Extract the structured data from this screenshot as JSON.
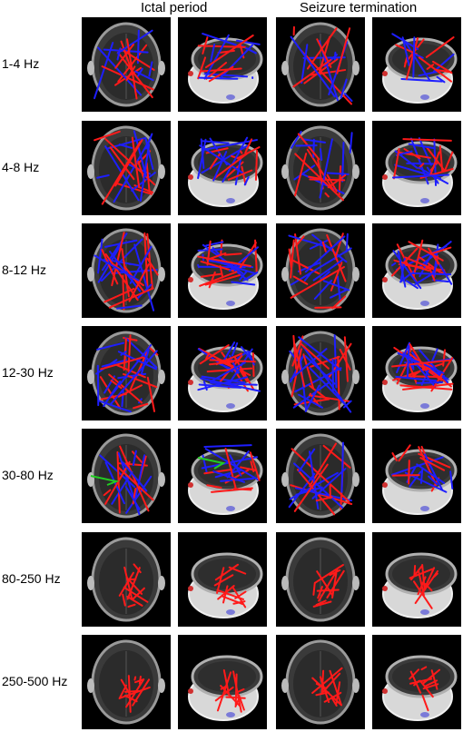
{
  "figure": {
    "columns": [
      "Ictal period",
      "Seizure termination"
    ],
    "rows": [
      {
        "label": "1-4 Hz",
        "colors": [
          "#1e1eff",
          "#ff1a1a"
        ],
        "dense": 1.0,
        "arrow": false
      },
      {
        "label": "4-8 Hz",
        "colors": [
          "#1e1eff",
          "#ff1a1a"
        ],
        "dense": 1.2,
        "arrow": false
      },
      {
        "label": "8-12 Hz",
        "colors": [
          "#1e1eff",
          "#ff1a1a"
        ],
        "dense": 1.5,
        "arrow": false
      },
      {
        "label": "12-30 Hz",
        "colors": [
          "#1e1eff",
          "#ff1a1a"
        ],
        "dense": 1.7,
        "arrow": false
      },
      {
        "label": "30-80 Hz",
        "colors": [
          "#ff1a1a",
          "#1e1eff"
        ],
        "dense": 1.0,
        "arrow": true
      },
      {
        "label": "80-250 Hz",
        "colors": [
          "#ff1a1a"
        ],
        "dense": 0.6,
        "arrow": false
      },
      {
        "label": "250-500 Hz",
        "colors": [
          "#ff1a1a"
        ],
        "dense": 0.6,
        "arrow": false
      }
    ],
    "panel_views": [
      "axial",
      "3d",
      "axial",
      "3d"
    ],
    "arrow_color": "#22cc22"
  }
}
